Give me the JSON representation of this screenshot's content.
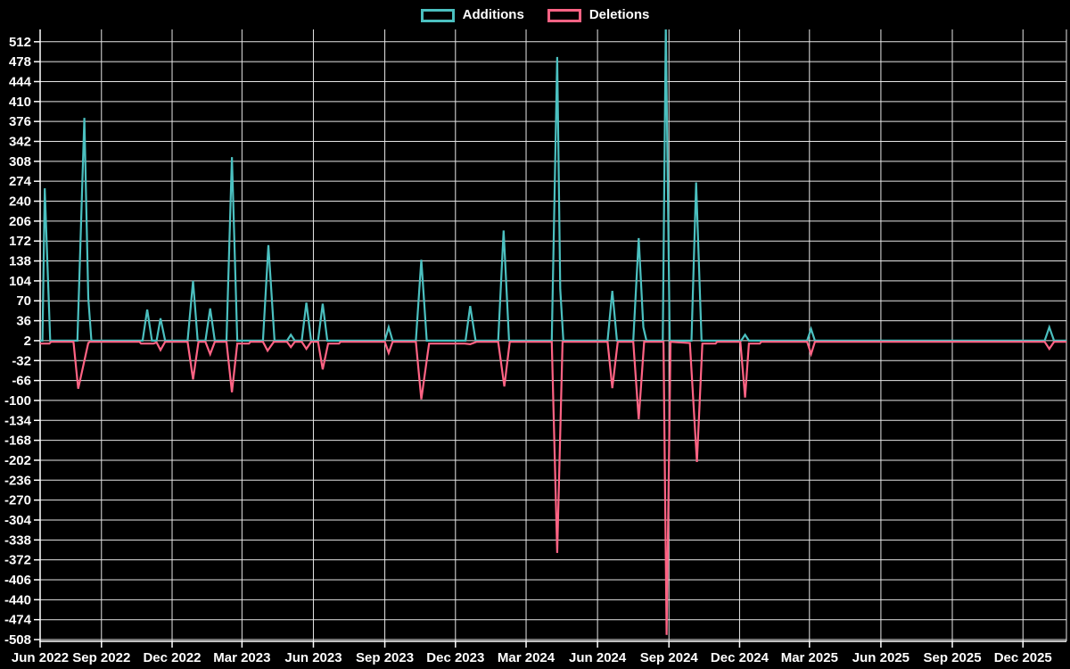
{
  "chart": {
    "background_color": "#000000",
    "text_color": "#ffffff",
    "grid_color": "#e6e6e6",
    "axis_color": "#ffffff"
  },
  "chart_data": {
    "type": "line",
    "title": "",
    "xlabel": "",
    "ylabel": "",
    "legend_position": "top-center",
    "grid": true,
    "xlim": [
      "2022-06-14",
      "2026-01-26"
    ],
    "ylim": [
      -511,
      533
    ],
    "y_ticks": [
      512,
      478,
      444,
      410,
      376,
      342,
      308,
      274,
      240,
      206,
      172,
      138,
      104,
      70,
      36,
      2,
      -32,
      -66,
      -100,
      -134,
      -168,
      -202,
      -236,
      -270,
      -304,
      -338,
      -372,
      -406,
      -440,
      -474,
      -508
    ],
    "x_ticks": [
      {
        "label": "Jun 2022",
        "date": "2022-06-14"
      },
      {
        "label": "Sep 2022",
        "date": "2022-09-01"
      },
      {
        "label": "Dec 2022",
        "date": "2022-12-01"
      },
      {
        "label": "Mar 2023",
        "date": "2023-03-01"
      },
      {
        "label": "Jun 2023",
        "date": "2023-06-01"
      },
      {
        "label": "Sep 2023",
        "date": "2023-09-01"
      },
      {
        "label": "Dec 2023",
        "date": "2023-12-01"
      },
      {
        "label": "Mar 2024",
        "date": "2024-03-01"
      },
      {
        "label": "Jun 2024",
        "date": "2024-06-01"
      },
      {
        "label": "Sep 2024",
        "date": "2024-09-01"
      },
      {
        "label": "Dec 2024",
        "date": "2024-12-01"
      },
      {
        "label": "Mar 2025",
        "date": "2025-03-01"
      },
      {
        "label": "Jun 2025",
        "date": "2025-06-01"
      },
      {
        "label": "Sep 2025",
        "date": "2025-09-01"
      },
      {
        "label": "Dec 2025",
        "date": "2025-12-01"
      }
    ],
    "series": [
      {
        "name": "Additions",
        "color": "#4bc0c0",
        "points": [
          [
            "2022-06-14",
            2
          ],
          [
            "2022-06-17",
            2
          ],
          [
            "2022-06-20",
            262
          ],
          [
            "2022-06-23",
            150
          ],
          [
            "2022-06-27",
            2
          ],
          [
            "2022-08-01",
            2
          ],
          [
            "2022-08-10",
            382
          ],
          [
            "2022-08-15",
            75
          ],
          [
            "2022-08-19",
            2
          ],
          [
            "2022-10-24",
            2
          ],
          [
            "2022-10-30",
            55
          ],
          [
            "2022-11-05",
            2
          ],
          [
            "2022-11-11",
            2
          ],
          [
            "2022-11-16",
            40
          ],
          [
            "2022-11-22",
            2
          ],
          [
            "2022-12-21",
            2
          ],
          [
            "2022-12-28",
            104
          ],
          [
            "2023-01-03",
            2
          ],
          [
            "2023-01-13",
            2
          ],
          [
            "2023-01-19",
            57
          ],
          [
            "2023-01-25",
            2
          ],
          [
            "2023-02-09",
            2
          ],
          [
            "2023-02-16",
            315
          ],
          [
            "2023-02-23",
            2
          ],
          [
            "2023-03-28",
            2
          ],
          [
            "2023-04-04",
            165
          ],
          [
            "2023-04-12",
            2
          ],
          [
            "2023-04-28",
            2
          ],
          [
            "2023-05-03",
            12
          ],
          [
            "2023-05-08",
            2
          ],
          [
            "2023-05-17",
            2
          ],
          [
            "2023-05-23",
            67
          ],
          [
            "2023-05-29",
            2
          ],
          [
            "2023-06-07",
            2
          ],
          [
            "2023-06-13",
            65
          ],
          [
            "2023-06-19",
            2
          ],
          [
            "2023-09-01",
            2
          ],
          [
            "2023-09-06",
            25
          ],
          [
            "2023-09-11",
            2
          ],
          [
            "2023-10-11",
            2
          ],
          [
            "2023-10-18",
            140
          ],
          [
            "2023-10-25",
            2
          ],
          [
            "2023-12-14",
            2
          ],
          [
            "2023-12-20",
            61
          ],
          [
            "2023-12-27",
            2
          ],
          [
            "2024-01-25",
            2
          ],
          [
            "2024-02-01",
            190
          ],
          [
            "2024-02-08",
            2
          ],
          [
            "2024-04-03",
            2
          ],
          [
            "2024-04-10",
            486
          ],
          [
            "2024-04-14",
            90
          ],
          [
            "2024-04-18",
            2
          ],
          [
            "2024-06-14",
            2
          ],
          [
            "2024-06-20",
            87
          ],
          [
            "2024-06-26",
            2
          ],
          [
            "2024-07-17",
            2
          ],
          [
            "2024-07-24",
            177
          ],
          [
            "2024-07-30",
            25
          ],
          [
            "2024-08-03",
            2
          ],
          [
            "2024-08-24",
            2
          ],
          [
            "2024-08-28",
            540
          ],
          [
            "2024-09-02",
            2
          ],
          [
            "2024-09-30",
            2
          ],
          [
            "2024-10-06",
            272
          ],
          [
            "2024-10-13",
            2
          ],
          [
            "2024-12-03",
            2
          ],
          [
            "2024-12-08",
            12
          ],
          [
            "2024-12-13",
            2
          ],
          [
            "2025-02-26",
            2
          ],
          [
            "2025-03-03",
            22
          ],
          [
            "2025-03-08",
            2
          ],
          [
            "2025-12-29",
            2
          ],
          [
            "2026-01-04",
            25
          ],
          [
            "2026-01-10",
            2
          ],
          [
            "2026-01-26",
            2
          ]
        ]
      },
      {
        "name": "Deletions",
        "color": "#ff6384",
        "points": [
          [
            "2022-06-14",
            -3
          ],
          [
            "2022-06-26",
            -3
          ],
          [
            "2022-06-28",
            0
          ],
          [
            "2022-07-27",
            0
          ],
          [
            "2022-08-02",
            -80
          ],
          [
            "2022-08-15",
            -2
          ],
          [
            "2022-08-17",
            0
          ],
          [
            "2022-10-20",
            0
          ],
          [
            "2022-10-22",
            -3
          ],
          [
            "2022-11-07",
            -3
          ],
          [
            "2022-11-11",
            -1
          ],
          [
            "2022-11-16",
            -14
          ],
          [
            "2022-11-22",
            0
          ],
          [
            "2022-12-21",
            0
          ],
          [
            "2022-12-28",
            -64
          ],
          [
            "2023-01-04",
            0
          ],
          [
            "2023-01-13",
            0
          ],
          [
            "2023-01-19",
            -21
          ],
          [
            "2023-01-25",
            0
          ],
          [
            "2023-02-09",
            0
          ],
          [
            "2023-02-16",
            -86
          ],
          [
            "2023-02-23",
            -3
          ],
          [
            "2023-03-10",
            -3
          ],
          [
            "2023-03-12",
            0
          ],
          [
            "2023-03-28",
            0
          ],
          [
            "2023-04-03",
            -15
          ],
          [
            "2023-04-11",
            0
          ],
          [
            "2023-04-28",
            0
          ],
          [
            "2023-05-03",
            -9
          ],
          [
            "2023-05-08",
            0
          ],
          [
            "2023-05-17",
            0
          ],
          [
            "2023-05-23",
            -12
          ],
          [
            "2023-05-29",
            0
          ],
          [
            "2023-06-07",
            0
          ],
          [
            "2023-06-13",
            -47
          ],
          [
            "2023-06-20",
            -3
          ],
          [
            "2023-07-04",
            -3
          ],
          [
            "2023-07-06",
            0
          ],
          [
            "2023-09-01",
            0
          ],
          [
            "2023-09-06",
            -19
          ],
          [
            "2023-09-11",
            0
          ],
          [
            "2023-10-11",
            0
          ],
          [
            "2023-10-18",
            -98
          ],
          [
            "2023-10-28",
            -3
          ],
          [
            "2023-12-13",
            -3
          ],
          [
            "2023-12-20",
            -4
          ],
          [
            "2023-12-28",
            0
          ],
          [
            "2024-01-25",
            0
          ],
          [
            "2024-02-02",
            -76
          ],
          [
            "2024-02-09",
            0
          ],
          [
            "2024-04-03",
            0
          ],
          [
            "2024-04-10",
            -360
          ],
          [
            "2024-04-17",
            0
          ],
          [
            "2024-06-14",
            0
          ],
          [
            "2024-06-20",
            -79
          ],
          [
            "2024-06-27",
            0
          ],
          [
            "2024-07-17",
            0
          ],
          [
            "2024-07-24",
            -132
          ],
          [
            "2024-07-31",
            0
          ],
          [
            "2024-08-25",
            0
          ],
          [
            "2024-08-29",
            -500
          ],
          [
            "2024-09-03",
            0
          ],
          [
            "2024-09-28",
            -2
          ],
          [
            "2024-10-07",
            -205
          ],
          [
            "2024-10-14",
            -3
          ],
          [
            "2024-10-31",
            -3
          ],
          [
            "2024-11-02",
            0
          ],
          [
            "2024-12-02",
            0
          ],
          [
            "2024-12-08",
            -95
          ],
          [
            "2024-12-13",
            -3
          ],
          [
            "2024-12-27",
            -3
          ],
          [
            "2024-12-29",
            0
          ],
          [
            "2025-02-26",
            0
          ],
          [
            "2025-03-03",
            -21
          ],
          [
            "2025-03-08",
            0
          ],
          [
            "2025-12-29",
            0
          ],
          [
            "2026-01-04",
            -12
          ],
          [
            "2026-01-10",
            0
          ],
          [
            "2026-01-26",
            0
          ]
        ]
      }
    ]
  }
}
